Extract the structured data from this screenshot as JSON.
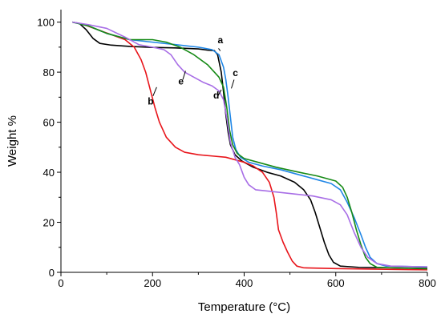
{
  "chart_data": {
    "type": "line",
    "xlabel": "Temperature (°C)",
    "ylabel": "Weight %",
    "xlim": [
      0,
      800
    ],
    "ylim": [
      0,
      105
    ],
    "x_ticks": [
      0,
      200,
      400,
      600,
      800
    ],
    "y_ticks": [
      0,
      20,
      40,
      60,
      80,
      100
    ],
    "grid": false,
    "series": [
      {
        "name": "a",
        "color": "#000000",
        "points": [
          [
            25,
            100
          ],
          [
            40,
            99.5
          ],
          [
            55,
            97
          ],
          [
            70,
            93.5
          ],
          [
            85,
            91.5
          ],
          [
            110,
            90.8
          ],
          [
            150,
            90.3
          ],
          [
            200,
            89.9
          ],
          [
            250,
            89.7
          ],
          [
            300,
            89.3
          ],
          [
            320,
            88.8
          ],
          [
            335,
            88.6
          ],
          [
            342,
            87
          ],
          [
            350,
            80
          ],
          [
            355,
            72
          ],
          [
            360,
            63
          ],
          [
            365,
            56
          ],
          [
            370,
            51
          ],
          [
            380,
            47
          ],
          [
            395,
            44.5
          ],
          [
            420,
            42
          ],
          [
            450,
            40
          ],
          [
            480,
            38.5
          ],
          [
            510,
            36
          ],
          [
            530,
            33
          ],
          [
            545,
            29
          ],
          [
            555,
            24
          ],
          [
            565,
            18
          ],
          [
            575,
            12
          ],
          [
            585,
            7
          ],
          [
            595,
            4
          ],
          [
            610,
            2.5
          ],
          [
            650,
            2
          ],
          [
            800,
            1.6
          ]
        ]
      },
      {
        "name": "b",
        "color": "#e8141a",
        "points": [
          [
            25,
            100
          ],
          [
            50,
            99
          ],
          [
            80,
            97
          ],
          [
            110,
            95
          ],
          [
            140,
            93
          ],
          [
            160,
            90
          ],
          [
            175,
            85
          ],
          [
            185,
            80
          ],
          [
            195,
            73
          ],
          [
            205,
            66
          ],
          [
            215,
            60
          ],
          [
            230,
            54
          ],
          [
            250,
            50
          ],
          [
            270,
            48
          ],
          [
            300,
            47
          ],
          [
            330,
            46.5
          ],
          [
            360,
            46
          ],
          [
            380,
            45
          ],
          [
            400,
            44
          ],
          [
            420,
            42.5
          ],
          [
            440,
            40
          ],
          [
            455,
            36
          ],
          [
            465,
            30
          ],
          [
            470,
            24
          ],
          [
            475,
            17
          ],
          [
            485,
            12
          ],
          [
            495,
            8
          ],
          [
            505,
            4.5
          ],
          [
            515,
            2.5
          ],
          [
            530,
            1.8
          ],
          [
            600,
            1.5
          ],
          [
            800,
            1
          ]
        ]
      },
      {
        "name": "c",
        "color": "#1f86e6",
        "points": [
          [
            25,
            100
          ],
          [
            60,
            98.5
          ],
          [
            100,
            95.5
          ],
          [
            150,
            93
          ],
          [
            200,
            92
          ],
          [
            250,
            91
          ],
          [
            300,
            90
          ],
          [
            330,
            89
          ],
          [
            345,
            87
          ],
          [
            355,
            82
          ],
          [
            360,
            77
          ],
          [
            365,
            70
          ],
          [
            370,
            62
          ],
          [
            375,
            54
          ],
          [
            382,
            49
          ],
          [
            392,
            46
          ],
          [
            410,
            44
          ],
          [
            440,
            42.5
          ],
          [
            480,
            41
          ],
          [
            520,
            39
          ],
          [
            560,
            37
          ],
          [
            590,
            35.5
          ],
          [
            610,
            33
          ],
          [
            625,
            28
          ],
          [
            640,
            22
          ],
          [
            655,
            15
          ],
          [
            665,
            10
          ],
          [
            675,
            6
          ],
          [
            690,
            3.5
          ],
          [
            710,
            2.5
          ],
          [
            800,
            2.2
          ]
        ]
      },
      {
        "name": "d",
        "color": "#168a16",
        "points": [
          [
            25,
            100
          ],
          [
            60,
            98.5
          ],
          [
            100,
            95.5
          ],
          [
            150,
            93
          ],
          [
            200,
            93
          ],
          [
            230,
            92
          ],
          [
            260,
            90
          ],
          [
            290,
            87
          ],
          [
            320,
            83
          ],
          [
            345,
            78
          ],
          [
            355,
            74
          ],
          [
            362,
            66
          ],
          [
            368,
            57
          ],
          [
            375,
            51
          ],
          [
            385,
            47.5
          ],
          [
            400,
            45.5
          ],
          [
            430,
            44
          ],
          [
            470,
            42
          ],
          [
            520,
            40
          ],
          [
            560,
            38.5
          ],
          [
            600,
            36.5
          ],
          [
            615,
            34
          ],
          [
            625,
            30
          ],
          [
            635,
            24
          ],
          [
            645,
            17
          ],
          [
            655,
            11
          ],
          [
            665,
            6
          ],
          [
            675,
            3.5
          ],
          [
            690,
            2
          ],
          [
            800,
            1.4
          ]
        ]
      },
      {
        "name": "e",
        "color": "#a86ee6",
        "points": [
          [
            25,
            100
          ],
          [
            60,
            99
          ],
          [
            100,
            97.5
          ],
          [
            140,
            94
          ],
          [
            170,
            91
          ],
          [
            200,
            90
          ],
          [
            225,
            89
          ],
          [
            240,
            87
          ],
          [
            255,
            83
          ],
          [
            270,
            80
          ],
          [
            290,
            78
          ],
          [
            310,
            76
          ],
          [
            330,
            74.5
          ],
          [
            345,
            72.5
          ],
          [
            355,
            69
          ],
          [
            362,
            62
          ],
          [
            370,
            52
          ],
          [
            380,
            46
          ],
          [
            390,
            43
          ],
          [
            400,
            38
          ],
          [
            410,
            35
          ],
          [
            425,
            33
          ],
          [
            450,
            32.5
          ],
          [
            500,
            31.5
          ],
          [
            550,
            30.5
          ],
          [
            590,
            29
          ],
          [
            610,
            27
          ],
          [
            625,
            23
          ],
          [
            640,
            16
          ],
          [
            655,
            10
          ],
          [
            670,
            6
          ],
          [
            690,
            3.5
          ],
          [
            720,
            2.5
          ],
          [
            800,
            2.2
          ]
        ]
      }
    ],
    "annotations": [
      {
        "text": "a",
        "x": 348,
        "y": 91.5,
        "line_from": [
          348,
          88.5
        ],
        "line_to": [
          344,
          89.5
        ]
      },
      {
        "text": "b",
        "x": 196,
        "y": 67,
        "line_from": [
          201,
          70.5
        ],
        "line_to": [
          209,
          74
        ]
      },
      {
        "text": "c",
        "x": 381,
        "y": 78.5,
        "line_from": [
          378,
          77
        ],
        "line_to": [
          372,
          73.5
        ]
      },
      {
        "text": "d",
        "x": 339,
        "y": 69.5,
        "line_from": [
          343,
          70.5
        ],
        "line_to": [
          350,
          73
        ]
      },
      {
        "text": "e",
        "x": 262,
        "y": 75,
        "line_from": [
          266,
          77
        ],
        "line_to": [
          272,
          80.5
        ]
      }
    ]
  }
}
